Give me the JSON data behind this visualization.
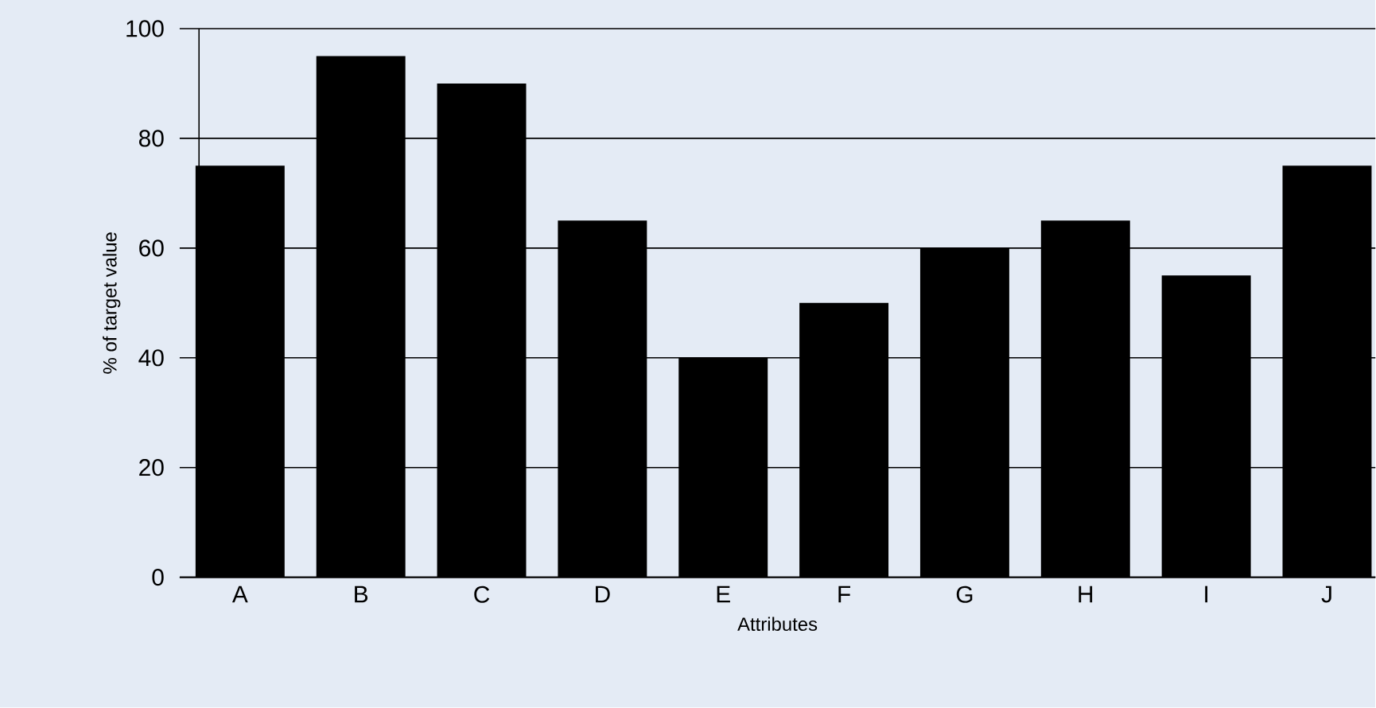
{
  "chart_data": {
    "type": "bar",
    "xlabel": "Attributes",
    "ylabel": "% of target value",
    "categories": [
      "A",
      "B",
      "C",
      "D",
      "E",
      "F",
      "G",
      "H",
      "I",
      "J"
    ],
    "values": [
      75,
      95,
      90,
      65,
      40,
      50,
      60,
      65,
      55,
      75
    ],
    "color": "#000000",
    "ylim": [
      0,
      100
    ],
    "yticks": [
      0,
      20,
      40,
      60,
      80,
      100
    ],
    "grid": "y"
  }
}
